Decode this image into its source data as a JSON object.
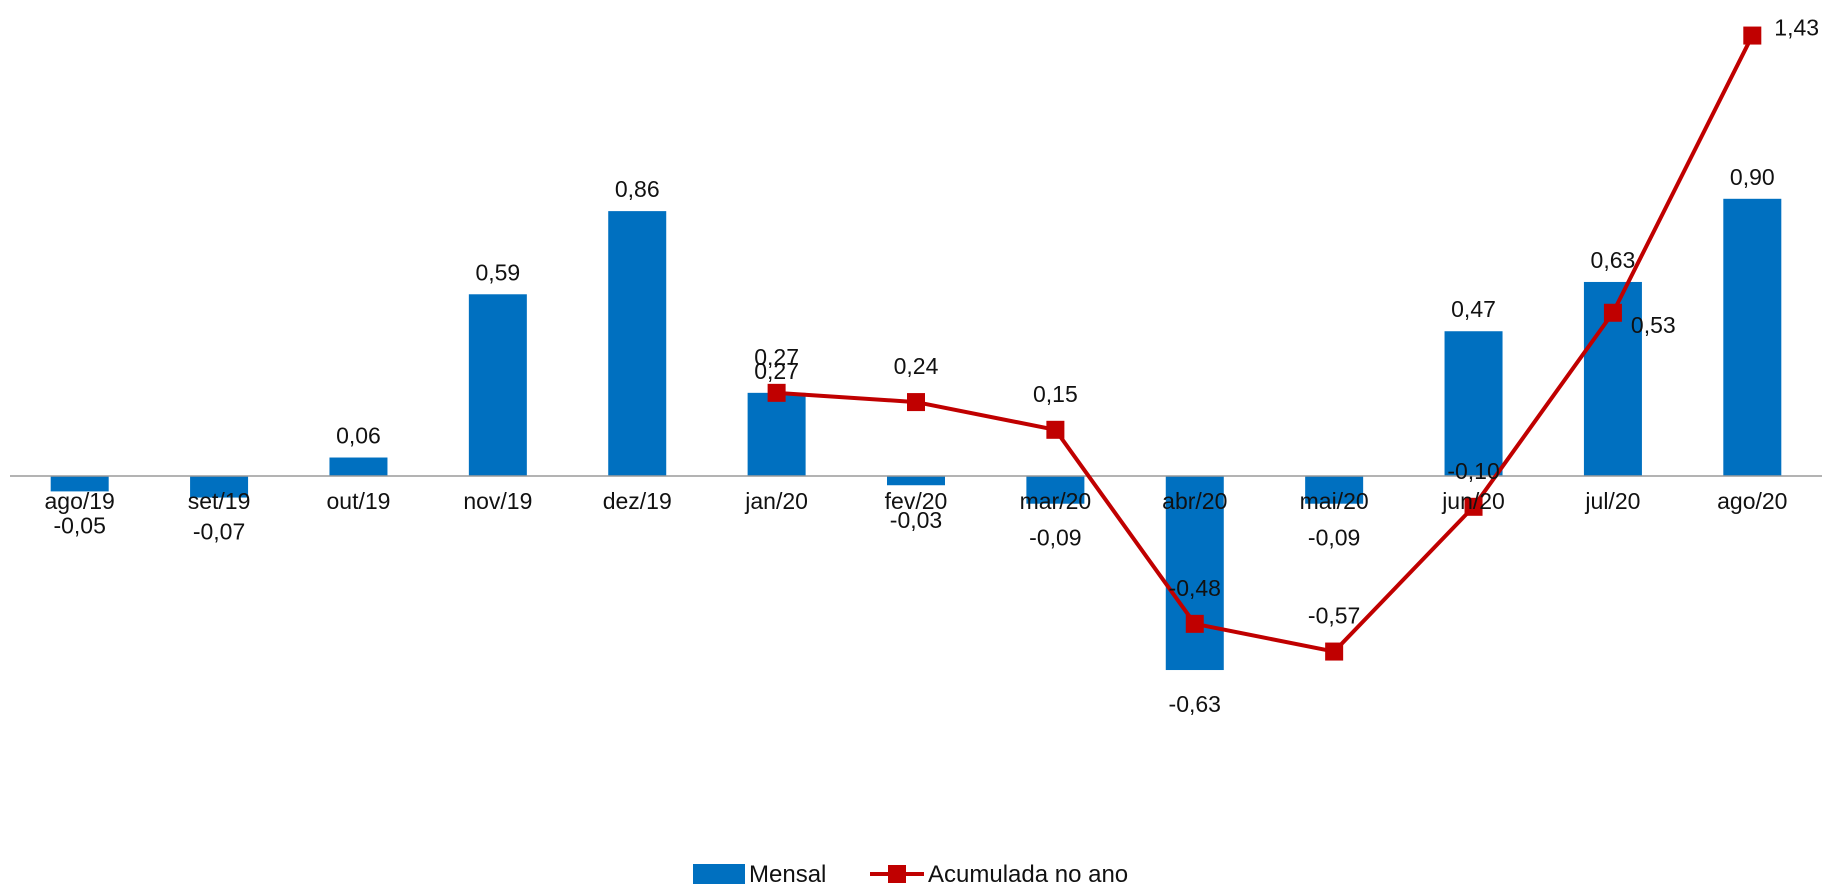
{
  "chart_data": {
    "type": "bar",
    "categories": [
      "ago/19",
      "set/19",
      "out/19",
      "nov/19",
      "dez/19",
      "jan/20",
      "fev/20",
      "mar/20",
      "abr/20",
      "mai/20",
      "jun/20",
      "jul/20",
      "ago/20"
    ],
    "series": [
      {
        "name": "Mensal",
        "type": "bar",
        "color": "#0070C0",
        "values": [
          -0.05,
          -0.07,
          0.06,
          0.59,
          0.86,
          0.27,
          -0.03,
          -0.09,
          -0.63,
          -0.09,
          0.47,
          0.63,
          0.9
        ],
        "labels": [
          "-0,05",
          "-0,07",
          "0,06",
          "0,59",
          "0,86",
          "0,27",
          "-0,03",
          "-0,09",
          "-0,63",
          "-0,09",
          "0,47",
          "0,63",
          "0,90"
        ]
      },
      {
        "name": "Acumulada no ano",
        "type": "line",
        "color": "#C00000",
        "values": [
          null,
          null,
          null,
          null,
          null,
          0.27,
          0.24,
          0.15,
          -0.48,
          -0.57,
          -0.1,
          0.53,
          1.43
        ],
        "labels": [
          "",
          "",
          "",
          "",
          "",
          "0,27",
          "0,24",
          "0,15",
          "-0,48",
          "-0,57",
          "-0,10",
          "0,53",
          "1,43"
        ]
      }
    ],
    "ylim": [
      -0.75,
      1.55
    ],
    "grid": false,
    "legend": "bottom-center"
  }
}
